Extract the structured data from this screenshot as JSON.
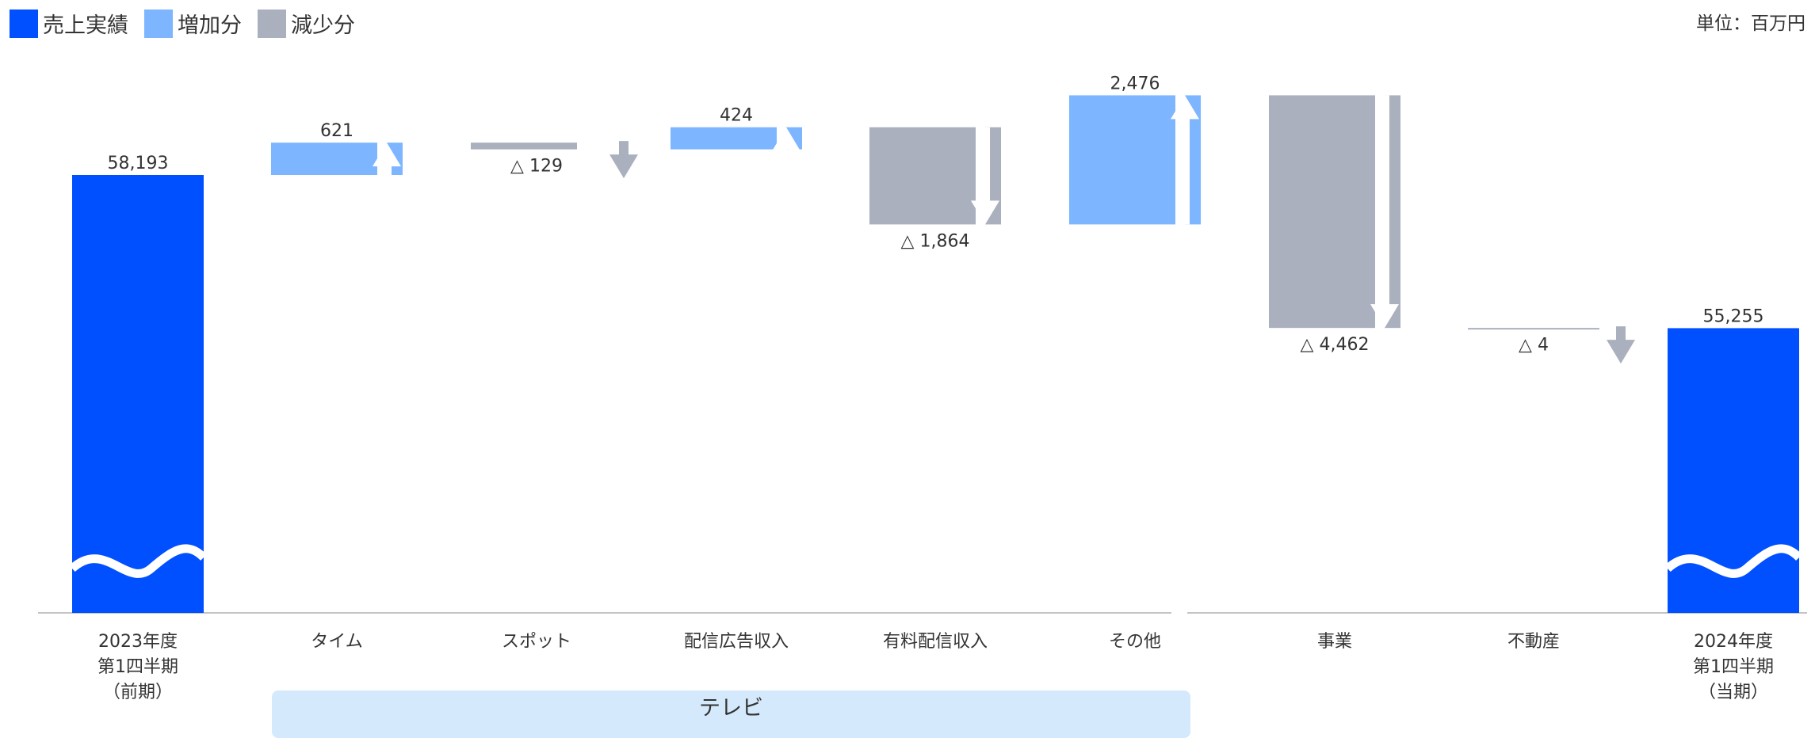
{
  "legend": [
    {
      "label": "売上実績",
      "color": "#0050ff"
    },
    {
      "label": "増加分",
      "color": "#7db6ff"
    },
    {
      "label": "減少分",
      "color": "#aab0bd"
    }
  ],
  "unit_label": "単位：百万円",
  "group_label": "テレビ",
  "chart_data": {
    "type": "waterfall",
    "title": "",
    "colors": {
      "total": "#0050ff",
      "increase": "#7db6ff",
      "decrease": "#aab0bd"
    },
    "y_axis_break": true,
    "categories": [
      {
        "label": "2023年度\n第1四半期\n（前期）",
        "kind": "total",
        "value": 58193,
        "value_label": "58,193"
      },
      {
        "label": "タイム",
        "kind": "increase",
        "value": 621,
        "value_label": "621"
      },
      {
        "label": "スポット",
        "kind": "decrease",
        "value": -129,
        "value_label": "△ 129"
      },
      {
        "label": "配信広告収入",
        "kind": "increase",
        "value": 424,
        "value_label": "424"
      },
      {
        "label": "有料配信収入",
        "kind": "decrease",
        "value": -1864,
        "value_label": "△ 1,864"
      },
      {
        "label": "その他",
        "kind": "increase",
        "value": 2476,
        "value_label": "2,476"
      },
      {
        "label": "事業",
        "kind": "decrease",
        "value": -4462,
        "value_label": "△ 4,462"
      },
      {
        "label": "不動産",
        "kind": "decrease",
        "value": -4,
        "value_label": "△ 4"
      },
      {
        "label": "2024年度\n第1四半期\n（当期）",
        "kind": "total",
        "value": 55255,
        "value_label": "55,255"
      }
    ]
  }
}
